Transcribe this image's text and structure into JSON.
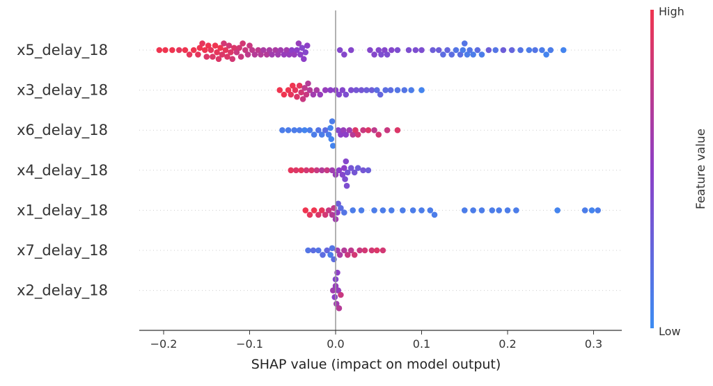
{
  "chart_data": {
    "type": "scatter",
    "subtype": "beeswarm",
    "xlabel": "SHAP value (impact on model output)",
    "xlim": [
      -0.225,
      0.335
    ],
    "xticks": [
      -0.2,
      -0.1,
      0.0,
      0.1,
      0.2,
      0.3
    ],
    "xtick_labels": [
      "−0.2",
      "−0.1",
      "0.0",
      "0.1",
      "0.2",
      "0.3"
    ],
    "grid": false,
    "colorbar": {
      "label": "Feature value",
      "high_label": "High",
      "low_label": "Low",
      "high_color": "#ef3550",
      "low_color": "#3c8cf2"
    },
    "features": [
      {
        "name": "x5_delay_18",
        "points": [
          [
            -0.205,
            1
          ],
          [
            -0.198,
            1
          ],
          [
            -0.19,
            1
          ],
          [
            -0.182,
            0.95
          ],
          [
            -0.175,
            1
          ],
          [
            -0.17,
            0.95
          ],
          [
            -0.165,
            1
          ],
          [
            -0.16,
            0.95
          ],
          [
            -0.158,
            1
          ],
          [
            -0.155,
            0.95
          ],
          [
            -0.152,
            1
          ],
          [
            -0.15,
            0.9
          ],
          [
            -0.148,
            1
          ],
          [
            -0.145,
            0.95
          ],
          [
            -0.143,
            0.9
          ],
          [
            -0.14,
            1
          ],
          [
            -0.138,
            0.95
          ],
          [
            -0.136,
            0.9
          ],
          [
            -0.134,
            1
          ],
          [
            -0.132,
            0.9
          ],
          [
            -0.13,
            0.85
          ],
          [
            -0.128,
            0.95
          ],
          [
            -0.126,
            0.9
          ],
          [
            -0.124,
            0.85
          ],
          [
            -0.122,
            0.9
          ],
          [
            -0.12,
            0.85
          ],
          [
            -0.118,
            0.9
          ],
          [
            -0.115,
            0.8
          ],
          [
            -0.112,
            0.85
          ],
          [
            -0.11,
            0.8
          ],
          [
            -0.108,
            0.85
          ],
          [
            -0.105,
            0.8
          ],
          [
            -0.102,
            0.75
          ],
          [
            -0.1,
            0.8
          ],
          [
            -0.097,
            0.75
          ],
          [
            -0.094,
            0.7
          ],
          [
            -0.09,
            0.75
          ],
          [
            -0.087,
            0.7
          ],
          [
            -0.084,
            0.65
          ],
          [
            -0.08,
            0.7
          ],
          [
            -0.077,
            0.65
          ],
          [
            -0.074,
            0.6
          ],
          [
            -0.07,
            0.65
          ],
          [
            -0.067,
            0.6
          ],
          [
            -0.064,
            0.6
          ],
          [
            -0.06,
            0.55
          ],
          [
            -0.057,
            0.6
          ],
          [
            -0.054,
            0.55
          ],
          [
            -0.051,
            0.5
          ],
          [
            -0.048,
            0.55
          ],
          [
            -0.045,
            0.5
          ],
          [
            -0.043,
            0.55
          ],
          [
            -0.041,
            0.5
          ],
          [
            -0.039,
            0.45
          ],
          [
            -0.037,
            0.5
          ],
          [
            -0.035,
            0.45
          ],
          [
            -0.033,
            0.5
          ],
          [
            0.005,
            0.45
          ],
          [
            0.01,
            0.45
          ],
          [
            0.018,
            0.45
          ],
          [
            0.04,
            0.45
          ],
          [
            0.045,
            0.45
          ],
          [
            0.05,
            0.45
          ],
          [
            0.053,
            0.4
          ],
          [
            0.057,
            0.45
          ],
          [
            0.06,
            0.4
          ],
          [
            0.065,
            0.45
          ],
          [
            0.072,
            0.4
          ],
          [
            0.085,
            0.4
          ],
          [
            0.093,
            0.4
          ],
          [
            0.1,
            0.4
          ],
          [
            0.113,
            0.3
          ],
          [
            0.12,
            0.3
          ],
          [
            0.125,
            0.2
          ],
          [
            0.13,
            0.25
          ],
          [
            0.135,
            0.2
          ],
          [
            0.14,
            0.15
          ],
          [
            0.145,
            0.2
          ],
          [
            0.148,
            0.1
          ],
          [
            0.15,
            0.15
          ],
          [
            0.153,
            0.1
          ],
          [
            0.156,
            0.15
          ],
          [
            0.16,
            0.1
          ],
          [
            0.165,
            0.2
          ],
          [
            0.17,
            0.1
          ],
          [
            0.178,
            0.3
          ],
          [
            0.186,
            0.15
          ],
          [
            0.195,
            0.3
          ],
          [
            0.205,
            0.25
          ],
          [
            0.215,
            0.15
          ],
          [
            0.225,
            0.1
          ],
          [
            0.232,
            0.15
          ],
          [
            0.24,
            0.1
          ],
          [
            0.245,
            0.05
          ],
          [
            0.25,
            0.1
          ],
          [
            0.265,
            0.05
          ]
        ]
      },
      {
        "name": "x3_delay_18",
        "points": [
          [
            -0.065,
            1
          ],
          [
            -0.06,
            1
          ],
          [
            -0.055,
            1
          ],
          [
            -0.052,
            0.95
          ],
          [
            -0.05,
            1
          ],
          [
            -0.047,
            0.95
          ],
          [
            -0.045,
            0.9
          ],
          [
            -0.042,
            0.95
          ],
          [
            -0.04,
            0.85
          ],
          [
            -0.038,
            0.8
          ],
          [
            -0.036,
            0.75
          ],
          [
            -0.034,
            0.8
          ],
          [
            -0.032,
            0.7
          ],
          [
            -0.03,
            0.7
          ],
          [
            -0.026,
            0.6
          ],
          [
            -0.022,
            0.65
          ],
          [
            -0.018,
            0.55
          ],
          [
            -0.012,
            0.55
          ],
          [
            -0.006,
            0.5
          ],
          [
            0.0,
            0.5
          ],
          [
            0.004,
            0.45
          ],
          [
            0.008,
            0.45
          ],
          [
            0.012,
            0.4
          ],
          [
            0.018,
            0.4
          ],
          [
            0.024,
            0.35
          ],
          [
            0.03,
            0.35
          ],
          [
            0.036,
            0.3
          ],
          [
            0.042,
            0.3
          ],
          [
            0.048,
            0.2
          ],
          [
            0.052,
            0.25
          ],
          [
            0.058,
            0.2
          ],
          [
            0.064,
            0.2
          ],
          [
            0.072,
            0.15
          ],
          [
            0.08,
            0.15
          ],
          [
            0.088,
            0.1
          ],
          [
            0.1,
            0.05
          ]
        ]
      },
      {
        "name": "x6_delay_18",
        "points": [
          [
            -0.062,
            0.1
          ],
          [
            -0.055,
            0.1
          ],
          [
            -0.048,
            0.1
          ],
          [
            -0.042,
            0.1
          ],
          [
            -0.036,
            0.05
          ],
          [
            -0.03,
            0.1
          ],
          [
            -0.025,
            0.1
          ],
          [
            -0.02,
            0.15
          ],
          [
            -0.016,
            0.1
          ],
          [
            -0.012,
            0.2
          ],
          [
            -0.008,
            0.1
          ],
          [
            -0.006,
            0.05
          ],
          [
            -0.005,
            0.05
          ],
          [
            -0.004,
            0.1
          ],
          [
            -0.003,
            0.05
          ],
          [
            0.003,
            0.45
          ],
          [
            0.006,
            0.5
          ],
          [
            0.009,
            0.55
          ],
          [
            0.012,
            0.5
          ],
          [
            0.016,
            0.6
          ],
          [
            0.02,
            0.7
          ],
          [
            0.023,
            0.9
          ],
          [
            0.026,
            0.85
          ],
          [
            0.032,
            0.8
          ],
          [
            0.038,
            0.9
          ],
          [
            0.045,
            0.75
          ],
          [
            0.05,
            0.85
          ],
          [
            0.06,
            0.8
          ],
          [
            0.072,
            0.9
          ]
        ]
      },
      {
        "name": "x4_delay_18",
        "points": [
          [
            -0.052,
            0.95
          ],
          [
            -0.046,
            0.9
          ],
          [
            -0.04,
            0.95
          ],
          [
            -0.034,
            0.85
          ],
          [
            -0.028,
            0.9
          ],
          [
            -0.022,
            0.8
          ],
          [
            -0.016,
            0.7
          ],
          [
            -0.01,
            0.8
          ],
          [
            -0.004,
            0.6
          ],
          [
            0.0,
            0.55
          ],
          [
            0.004,
            0.5
          ],
          [
            0.008,
            0.45
          ],
          [
            0.01,
            0.5
          ],
          [
            0.011,
            0.4
          ],
          [
            0.012,
            0.45
          ],
          [
            0.013,
            0.4
          ],
          [
            0.014,
            0.35
          ],
          [
            0.018,
            0.35
          ],
          [
            0.022,
            0.35
          ],
          [
            0.026,
            0.3
          ],
          [
            0.032,
            0.35
          ],
          [
            0.038,
            0.3
          ]
        ]
      },
      {
        "name": "x1_delay_18",
        "points": [
          [
            -0.035,
            1
          ],
          [
            -0.03,
            0.95
          ],
          [
            -0.025,
            1
          ],
          [
            -0.02,
            0.9
          ],
          [
            -0.016,
            0.95
          ],
          [
            -0.012,
            0.85
          ],
          [
            -0.008,
            0.8
          ],
          [
            -0.004,
            0.7
          ],
          [
            -0.002,
            0.75
          ],
          [
            0.0,
            0.6
          ],
          [
            0.002,
            0.5
          ],
          [
            0.003,
            0.3
          ],
          [
            0.006,
            0.2
          ],
          [
            0.01,
            0.15
          ],
          [
            0.02,
            0.1
          ],
          [
            0.03,
            0.1
          ],
          [
            0.045,
            0.1
          ],
          [
            0.055,
            0.1
          ],
          [
            0.065,
            0.1
          ],
          [
            0.078,
            0.1
          ],
          [
            0.09,
            0.1
          ],
          [
            0.1,
            0.1
          ],
          [
            0.11,
            0.1
          ],
          [
            0.115,
            0.1
          ],
          [
            0.15,
            0.1
          ],
          [
            0.16,
            0.1
          ],
          [
            0.17,
            0.1
          ],
          [
            0.182,
            0.1
          ],
          [
            0.19,
            0.1
          ],
          [
            0.2,
            0.1
          ],
          [
            0.21,
            0.1
          ],
          [
            0.258,
            0.05
          ],
          [
            0.29,
            0.1
          ],
          [
            0.298,
            0.05
          ],
          [
            0.305,
            0.1
          ]
        ]
      },
      {
        "name": "x7_delay_18",
        "points": [
          [
            -0.032,
            0.15
          ],
          [
            -0.026,
            0.2
          ],
          [
            -0.02,
            0.15
          ],
          [
            -0.015,
            0.2
          ],
          [
            -0.01,
            0.25
          ],
          [
            -0.006,
            0.1
          ],
          [
            -0.004,
            0.15
          ],
          [
            -0.002,
            0.2
          ],
          [
            0.002,
            0.6
          ],
          [
            0.005,
            0.65
          ],
          [
            0.01,
            0.7
          ],
          [
            0.014,
            0.8
          ],
          [
            0.018,
            0.75
          ],
          [
            0.022,
            0.85
          ],
          [
            0.028,
            0.8
          ],
          [
            0.034,
            0.85
          ],
          [
            0.042,
            0.85
          ],
          [
            0.048,
            0.9
          ],
          [
            0.055,
            0.85
          ]
        ]
      },
      {
        "name": "x2_delay_18",
        "points": [
          [
            -0.003,
            0.6
          ],
          [
            -0.001,
            0.5
          ],
          [
            0.0,
            0.55
          ],
          [
            0.0,
            0.45
          ],
          [
            0.001,
            0.6
          ],
          [
            0.002,
            0.5
          ],
          [
            0.003,
            0.55
          ],
          [
            0.004,
            0.7
          ],
          [
            0.006,
            0.8
          ]
        ]
      }
    ]
  }
}
